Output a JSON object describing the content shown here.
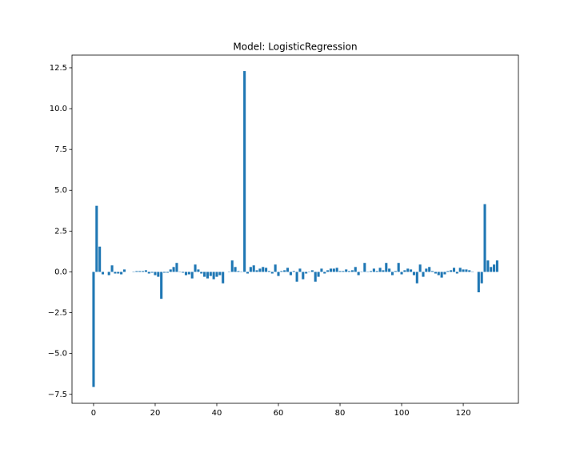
{
  "chart_data": {
    "type": "bar",
    "title": "Model: LogisticRegression",
    "x": [
      0,
      1,
      2,
      3,
      4,
      5,
      6,
      7,
      8,
      9,
      10,
      11,
      12,
      13,
      14,
      15,
      16,
      17,
      18,
      19,
      20,
      21,
      22,
      23,
      24,
      25,
      26,
      27,
      28,
      29,
      30,
      31,
      32,
      33,
      34,
      35,
      36,
      37,
      38,
      39,
      40,
      41,
      42,
      43,
      44,
      45,
      46,
      47,
      48,
      49,
      50,
      51,
      52,
      53,
      54,
      55,
      56,
      57,
      58,
      59,
      60,
      61,
      62,
      63,
      64,
      65,
      66,
      67,
      68,
      69,
      70,
      71,
      72,
      73,
      74,
      75,
      76,
      77,
      78,
      79,
      80,
      81,
      82,
      83,
      84,
      85,
      86,
      87,
      88,
      89,
      90,
      91,
      92,
      93,
      94,
      95,
      96,
      97,
      98,
      99,
      100,
      101,
      102,
      103,
      104,
      105,
      106,
      107,
      108,
      109,
      110,
      111,
      112,
      113,
      114,
      115,
      116,
      117,
      118,
      119,
      120,
      121,
      122,
      123,
      124,
      125,
      126,
      127,
      128,
      129,
      130,
      131
    ],
    "values": [
      -7.05,
      4.05,
      1.55,
      -0.15,
      0.0,
      -0.2,
      0.4,
      -0.1,
      -0.1,
      -0.15,
      0.15,
      0,
      0,
      0.02,
      0.05,
      0.05,
      0.05,
      0.1,
      -0.1,
      -0.05,
      -0.2,
      -0.3,
      -1.65,
      -0.05,
      -0.05,
      0.15,
      0.3,
      0.55,
      0.02,
      -0.05,
      -0.2,
      -0.15,
      -0.4,
      0.45,
      0.15,
      -0.1,
      -0.3,
      -0.4,
      -0.25,
      -0.45,
      -0.3,
      -0.2,
      -0.7,
      0,
      0.02,
      0.7,
      0.3,
      0.05,
      0.02,
      12.3,
      -0.1,
      0.3,
      0.4,
      0.1,
      0.2,
      0.3,
      0.25,
      0.05,
      -0.1,
      0.45,
      -0.25,
      0.05,
      0.1,
      0.25,
      -0.2,
      0.05,
      -0.6,
      0.2,
      -0.45,
      -0.1,
      0.02,
      0.1,
      -0.6,
      -0.3,
      0.2,
      -0.1,
      0.1,
      0.2,
      0.2,
      0.25,
      0.05,
      0.05,
      0.15,
      0.05,
      0.1,
      0.3,
      -0.2,
      0.02,
      0.55,
      0.02,
      0.05,
      0.2,
      0.05,
      0.25,
      0.1,
      0.55,
      0.2,
      -0.2,
      0.05,
      0.55,
      -0.15,
      0.1,
      0.2,
      0.15,
      -0.2,
      -0.7,
      0.45,
      -0.3,
      0.2,
      0.3,
      0.05,
      -0.1,
      -0.2,
      -0.35,
      -0.15,
      0.05,
      0.1,
      0.25,
      -0.1,
      0.25,
      0.15,
      0.15,
      0.1,
      0.02,
      0,
      -1.25,
      -0.7,
      4.15,
      0.7,
      0.3,
      0.45,
      0.7
    ],
    "color": "#1f77b4",
    "xlim": [
      -7.0,
      137.9
    ],
    "ylim": [
      -8.05,
      13.28
    ],
    "xticks": [
      0,
      20,
      40,
      60,
      80,
      100,
      120
    ],
    "yticks": [
      {
        "value": -7.5,
        "label": "−7.5"
      },
      {
        "value": -5,
        "label": "−5.0"
      },
      {
        "value": -2.5,
        "label": "−2.5"
      },
      {
        "value": 0,
        "label": "0.0"
      },
      2.5,
      {
        "value": 5,
        "label": "5.0"
      },
      7.5,
      {
        "value": 10,
        "label": "10.0"
      },
      12.5
    ],
    "grid": false
  }
}
